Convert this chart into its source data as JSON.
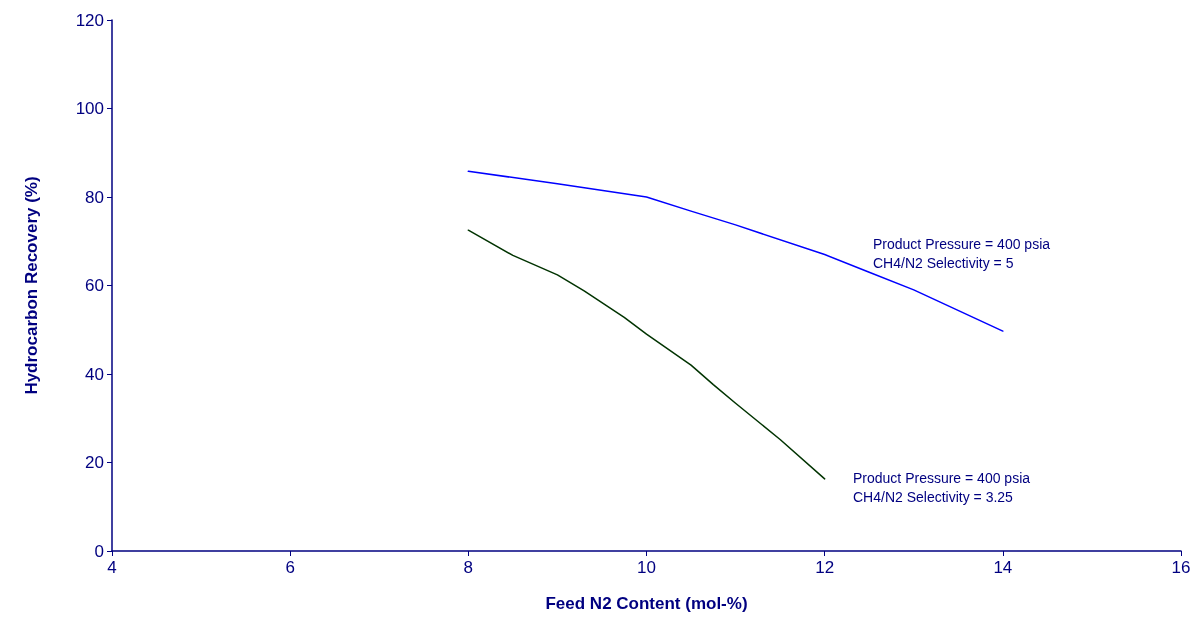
{
  "chart_data": {
    "type": "line",
    "xlabel": "Feed N2 Content (mol-%)",
    "ylabel": "Hydrocarbon Recovery (%)",
    "xlim": [
      4,
      16
    ],
    "xticks": [
      4,
      6,
      8,
      10,
      12,
      14,
      16
    ],
    "ylim": [
      0,
      120
    ],
    "yticks": [
      0,
      20,
      40,
      60,
      80,
      100,
      120
    ],
    "grid": false,
    "marker": "none",
    "line_style": "solid",
    "series": [
      {
        "color": "#0000ff",
        "x": [
          8,
          9,
          10,
          10.5,
          11,
          12,
          12.5,
          13,
          14
        ],
        "values": [
          85.8,
          83,
          80,
          76.8,
          73.7,
          67,
          63,
          59,
          49.7
        ]
      },
      {
        "color": "#003300",
        "x": [
          8,
          8.5,
          9,
          9.3,
          9.75,
          10,
          10.5,
          10.75,
          11,
          11.5,
          12
        ],
        "values": [
          72.5,
          66.8,
          62.4,
          58.8,
          52.8,
          49,
          42,
          37.6,
          33.4,
          25.2,
          16.3
        ]
      }
    ],
    "annotations": [
      "Product Pressure = 400 psia\nCH4/N2 Selectivity = 5",
      "Product Pressure = 400 psia\nCH4/N2 Selectivity = 3.25"
    ]
  }
}
